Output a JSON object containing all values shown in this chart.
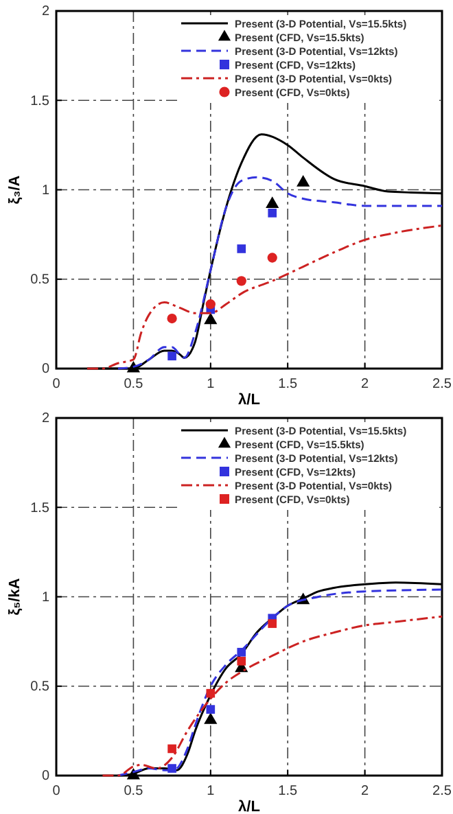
{
  "chart_data": [
    {
      "type": "line",
      "xlabel": "λ/L",
      "ylabel": "ξ₃/A",
      "xlim": [
        0,
        2.5
      ],
      "ylim": [
        0,
        2
      ],
      "xticks": [
        0,
        0.5,
        1,
        1.5,
        2,
        2.5
      ],
      "yticks": [
        0,
        0.5,
        1,
        1.5,
        2
      ],
      "grid": true,
      "legend": "top right",
      "series": [
        {
          "name": "Present (3-D Potential, Vs=15.5kts)",
          "type": "line",
          "line_style": "solid",
          "color": "#000000",
          "x": [
            0.2,
            0.4,
            0.5,
            0.6,
            0.7,
            0.75,
            0.8,
            0.83,
            0.9,
            0.95,
            1.0,
            1.1,
            1.2,
            1.33,
            1.5,
            1.6,
            1.8,
            2.0,
            2.15,
            2.3,
            2.5
          ],
          "values": [
            0,
            0,
            0,
            0.05,
            0.1,
            0.1,
            0.08,
            0.06,
            0.15,
            0.35,
            0.55,
            0.9,
            1.15,
            1.31,
            1.25,
            1.18,
            1.06,
            1.02,
            0.99,
            0.985,
            0.98
          ]
        },
        {
          "name": "Present (CFD, Vs=15.5kts)",
          "type": "scatter",
          "marker": "triangle",
          "color": "#000000",
          "x": [
            0.5,
            1.0,
            1.4,
            1.6
          ],
          "values": [
            0,
            0.27,
            0.92,
            1.04
          ]
        },
        {
          "name": "Present (3-D Potential, Vs=12kts)",
          "type": "line",
          "line_style": "dashed",
          "color": "#3333dd",
          "x": [
            0.4,
            0.5,
            0.6,
            0.7,
            0.75,
            0.8,
            0.83,
            0.9,
            1.0,
            1.1,
            1.2,
            1.3,
            1.4,
            1.5,
            1.6,
            1.8,
            2.0,
            2.2,
            2.5
          ],
          "values": [
            0,
            0.01,
            0.05,
            0.12,
            0.12,
            0.08,
            0.06,
            0.2,
            0.55,
            0.9,
            1.05,
            1.07,
            1.05,
            0.98,
            0.95,
            0.93,
            0.91,
            0.91,
            0.91
          ]
        },
        {
          "name": "Present (CFD, Vs=12kts)",
          "type": "scatter",
          "marker": "square",
          "color": "#3333dd",
          "x": [
            0.75,
            1.0,
            1.2,
            1.4
          ],
          "values": [
            0.07,
            0.33,
            0.67,
            0.87
          ]
        },
        {
          "name": "Present (3-D Potential, Vs=0kts)",
          "type": "line",
          "line_style": "dashdot",
          "color": "#cc2222",
          "x": [
            0.2,
            0.3,
            0.4,
            0.5,
            0.55,
            0.6,
            0.7,
            0.8,
            0.9,
            1.0,
            1.1,
            1.2,
            1.4,
            1.6,
            1.8,
            2.0,
            2.2,
            2.5
          ],
          "values": [
            0,
            0,
            0.03,
            0.05,
            0.2,
            0.3,
            0.37,
            0.34,
            0.31,
            0.31,
            0.36,
            0.42,
            0.49,
            0.57,
            0.65,
            0.72,
            0.76,
            0.8
          ]
        },
        {
          "name": "Present (CFD, Vs=0kts)",
          "type": "scatter",
          "marker": "circle",
          "color": "#dd2222",
          "x": [
            0.75,
            1.0,
            1.2,
            1.4
          ],
          "values": [
            0.28,
            0.36,
            0.49,
            0.62
          ]
        }
      ]
    },
    {
      "type": "line",
      "xlabel": "λ/L",
      "ylabel": "ξ₅/kA",
      "xlim": [
        0,
        2.5
      ],
      "ylim": [
        0,
        2
      ],
      "xticks": [
        0,
        0.5,
        1,
        1.5,
        2,
        2.5
      ],
      "yticks": [
        0,
        0.5,
        1,
        1.5,
        2
      ],
      "grid": true,
      "legend": "top right",
      "series": [
        {
          "name": "Present (3-D Potential, Vs=15.5kts)",
          "type": "line",
          "line_style": "solid",
          "color": "#000000",
          "x": [
            0.4,
            0.5,
            0.6,
            0.7,
            0.78,
            0.85,
            0.9,
            1.0,
            1.1,
            1.2,
            1.3,
            1.4,
            1.5,
            1.6,
            1.7,
            1.8,
            2.0,
            2.2,
            2.5
          ],
          "values": [
            0,
            0.01,
            0.04,
            0.04,
            0.03,
            0.12,
            0.25,
            0.45,
            0.6,
            0.68,
            0.8,
            0.88,
            0.95,
            0.99,
            1.03,
            1.05,
            1.07,
            1.08,
            1.07
          ]
        },
        {
          "name": "Present (CFD, Vs=15.5kts)",
          "type": "scatter",
          "marker": "triangle",
          "color": "#000000",
          "x": [
            0.5,
            1.0,
            1.2,
            1.6
          ],
          "values": [
            0,
            0.31,
            0.6,
            0.98
          ]
        },
        {
          "name": "Present (3-D Potential, Vs=12kts)",
          "type": "line",
          "line_style": "dashed",
          "color": "#3333dd",
          "x": [
            0.4,
            0.5,
            0.6,
            0.7,
            0.76,
            0.85,
            0.9,
            1.0,
            1.1,
            1.2,
            1.4,
            1.5,
            1.7,
            2.0,
            2.5
          ],
          "values": [
            0,
            0.02,
            0.04,
            0.03,
            0.03,
            0.15,
            0.28,
            0.5,
            0.62,
            0.7,
            0.88,
            0.95,
            1.0,
            1.03,
            1.04
          ]
        },
        {
          "name": "Present (CFD, Vs=12kts)",
          "type": "scatter",
          "marker": "square",
          "color": "#3333dd",
          "x": [
            0.75,
            1.0,
            1.2,
            1.4
          ],
          "values": [
            0.04,
            0.37,
            0.69,
            0.88
          ]
        },
        {
          "name": "Present (3-D Potential, Vs=0kts)",
          "type": "line",
          "line_style": "dashdot",
          "color": "#cc2222",
          "x": [
            0.3,
            0.4,
            0.5,
            0.55,
            0.65,
            0.75,
            0.85,
            1.0,
            1.1,
            1.2,
            1.4,
            1.6,
            1.8,
            2.0,
            2.2,
            2.5
          ],
          "values": [
            0,
            0,
            0.05,
            0.06,
            0.04,
            0.1,
            0.25,
            0.43,
            0.52,
            0.58,
            0.67,
            0.75,
            0.8,
            0.84,
            0.86,
            0.89
          ]
        },
        {
          "name": "Present (CFD, Vs=0kts)",
          "type": "scatter",
          "marker": "square",
          "color": "#dd2222",
          "x": [
            0.75,
            1.0,
            1.2,
            1.4
          ],
          "values": [
            0.15,
            0.46,
            0.64,
            0.85
          ]
        }
      ]
    }
  ]
}
